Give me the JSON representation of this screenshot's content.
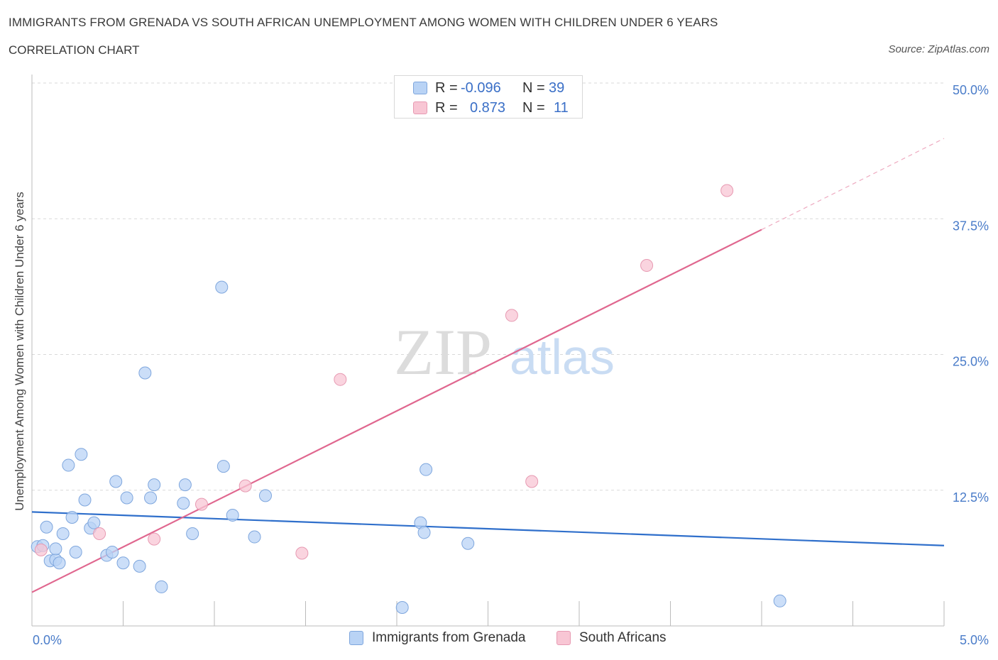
{
  "header": {
    "title": "IMMIGRANTS FROM GRENADA VS SOUTH AFRICAN UNEMPLOYMENT AMONG WOMEN WITH CHILDREN UNDER 6 YEARS",
    "subtitle": "CORRELATION CHART",
    "source": "Source: ZipAtlas.com"
  },
  "watermark": {
    "zip": "ZIP",
    "atlas": "atlas"
  },
  "legend_top": {
    "rows": [
      {
        "r_label": "R =",
        "r_value": "-0.096",
        "n_label": "N =",
        "n_value": "39",
        "color": "#b9d3f5"
      },
      {
        "r_label": "R =",
        "r_value": "0.873",
        "n_label": "N =",
        "n_value": "11",
        "color": "#f8c6d4"
      }
    ]
  },
  "legend_bottom": {
    "items": [
      {
        "label": "Immigrants from Grenada",
        "color": "#b9d3f5",
        "border": "#7ea6dd"
      },
      {
        "label": "South Africans",
        "color": "#f8c6d4",
        "border": "#e79ab2"
      }
    ]
  },
  "chart_data": {
    "type": "scatter",
    "title": "IMMIGRANTS FROM GRENADA VS SOUTH AFRICAN UNEMPLOYMENT AMONG WOMEN WITH CHILDREN UNDER 6 YEARS",
    "xlabel": "",
    "ylabel": "Unemployment Among Women with Children Under 6 years",
    "xlim": [
      0,
      5
    ],
    "ylim": [
      0,
      50
    ],
    "x_tick_labels": [
      "0.0%",
      "5.0%"
    ],
    "y_ticks": [
      12.5,
      25.0,
      37.5,
      50.0
    ],
    "y_tick_labels": [
      "12.5%",
      "25.0%",
      "37.5%",
      "50.0%"
    ],
    "grid": true,
    "legend_position": "bottom",
    "series": [
      {
        "name": "Immigrants from Grenada",
        "color": "#b9d3f5",
        "stroke": "#7ea6dd",
        "points": [
          [
            0.03,
            7.3
          ],
          [
            0.06,
            7.4
          ],
          [
            0.08,
            9.1
          ],
          [
            0.1,
            6.0
          ],
          [
            0.13,
            6.1
          ],
          [
            0.15,
            5.8
          ],
          [
            0.17,
            8.5
          ],
          [
            0.2,
            14.8
          ],
          [
            0.22,
            10.0
          ],
          [
            0.24,
            6.8
          ],
          [
            0.27,
            15.8
          ],
          [
            0.29,
            11.6
          ],
          [
            0.32,
            9.0
          ],
          [
            0.34,
            9.5
          ],
          [
            0.41,
            6.5
          ],
          [
            0.44,
            6.8
          ],
          [
            0.46,
            13.3
          ],
          [
            0.5,
            5.8
          ],
          [
            0.52,
            11.8
          ],
          [
            0.59,
            5.5
          ],
          [
            0.62,
            23.3
          ],
          [
            0.65,
            11.8
          ],
          [
            0.67,
            13.0
          ],
          [
            0.71,
            3.6
          ],
          [
            0.83,
            11.3
          ],
          [
            0.84,
            13.0
          ],
          [
            0.88,
            8.5
          ],
          [
            1.04,
            31.2
          ],
          [
            1.05,
            14.7
          ],
          [
            1.1,
            10.2
          ],
          [
            1.22,
            8.2
          ],
          [
            1.28,
            12.0
          ],
          [
            2.03,
            1.7
          ],
          [
            2.13,
            9.5
          ],
          [
            2.15,
            8.6
          ],
          [
            2.16,
            14.4
          ],
          [
            2.39,
            7.6
          ],
          [
            4.1,
            2.3
          ],
          [
            0.13,
            7.1
          ]
        ],
        "trend": {
          "x": [
            0,
            5
          ],
          "y": [
            10.5,
            7.4
          ]
        }
      },
      {
        "name": "South Africans",
        "color": "#f8c6d4",
        "stroke": "#e79ab2",
        "points": [
          [
            0.05,
            7.0
          ],
          [
            0.37,
            8.5
          ],
          [
            0.67,
            8.0
          ],
          [
            0.93,
            11.2
          ],
          [
            1.17,
            12.9
          ],
          [
            1.48,
            6.7
          ],
          [
            1.69,
            22.7
          ],
          [
            2.63,
            28.6
          ],
          [
            2.74,
            13.3
          ],
          [
            3.37,
            33.2
          ],
          [
            3.81,
            40.1
          ]
        ],
        "trend": {
          "x": [
            0,
            4.0
          ],
          "y": [
            3.1,
            36.5
          ]
        },
        "trend_extension": {
          "x": [
            4.0,
            5.0
          ],
          "y": [
            36.5,
            44.9
          ]
        }
      }
    ]
  }
}
